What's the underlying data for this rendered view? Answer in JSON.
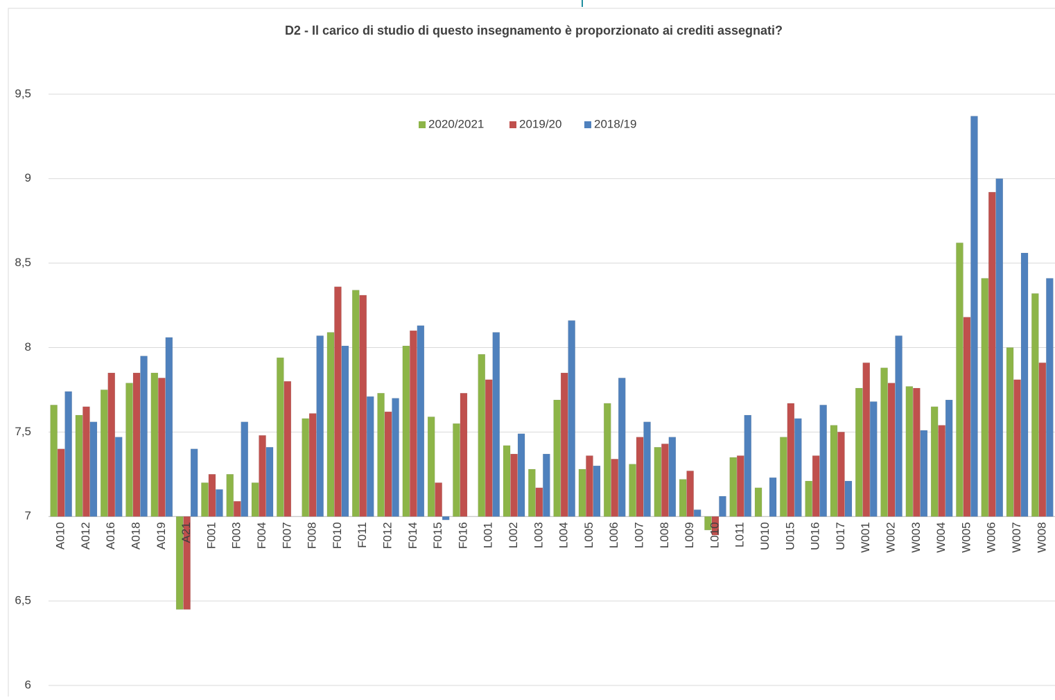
{
  "chart_data": {
    "type": "bar",
    "title": "D2 - Il carico di studio di questo insegnamento è proporzionato ai crediti assegnati?",
    "categories": [
      "A010",
      "A012",
      "A016",
      "A018",
      "A019",
      "A21",
      "F001",
      "F003",
      "F004",
      "F007",
      "F008",
      "F010",
      "F011",
      "F012",
      "F014",
      "F015",
      "F016",
      "L001",
      "L002",
      "L003",
      "L004",
      "L005",
      "L006",
      "L007",
      "L008",
      "L009",
      "L010",
      "L011",
      "U010",
      "U015",
      "U016",
      "U017",
      "W001",
      "W002",
      "W003",
      "W004",
      "W005",
      "W006",
      "W007",
      "W008"
    ],
    "series": [
      {
        "name": "2020/2021",
        "color": "#8db548",
        "values": [
          7.66,
          7.6,
          7.75,
          7.79,
          7.85,
          6.45,
          7.2,
          7.25,
          7.2,
          7.94,
          7.58,
          8.09,
          8.34,
          7.73,
          8.01,
          7.59,
          7.55,
          7.96,
          7.42,
          7.28,
          7.69,
          7.28,
          7.67,
          7.31,
          7.41,
          7.22,
          6.92,
          7.35,
          7.17,
          7.47,
          7.21,
          7.54,
          7.76,
          7.88,
          7.77,
          7.65,
          8.62,
          8.41,
          8.0,
          8.32
        ]
      },
      {
        "name": "2019/20",
        "color": "#c0504d",
        "values": [
          7.4,
          7.65,
          7.85,
          7.85,
          7.82,
          6.45,
          7.25,
          7.09,
          7.48,
          7.8,
          7.61,
          8.36,
          8.31,
          7.62,
          8.1,
          7.2,
          7.73,
          7.81,
          7.37,
          7.17,
          7.85,
          7.36,
          7.34,
          7.47,
          7.43,
          7.27,
          6.89,
          7.36,
          null,
          7.67,
          7.36,
          7.5,
          7.91,
          7.79,
          7.76,
          7.54,
          8.18,
          8.92,
          7.81,
          7.91
        ]
      },
      {
        "name": "2018/19",
        "color": "#4f81bd",
        "values": [
          7.74,
          7.56,
          7.47,
          7.95,
          8.06,
          7.4,
          7.16,
          7.56,
          7.41,
          null,
          8.07,
          8.01,
          7.71,
          7.7,
          8.13,
          6.98,
          null,
          8.09,
          7.49,
          7.37,
          8.16,
          7.3,
          7.82,
          7.56,
          7.47,
          7.04,
          7.12,
          7.6,
          7.23,
          7.58,
          7.66,
          7.21,
          7.68,
          8.07,
          7.51,
          7.69,
          9.37,
          9.0,
          8.56,
          8.41
        ]
      }
    ],
    "ylim": [
      6,
      10
    ],
    "yticks": [
      6,
      {
        "value": 6.5,
        "label": "6,5"
      },
      7,
      {
        "value": 7.5,
        "label": "7,5"
      },
      8,
      {
        "value": 8.5,
        "label": "8,5"
      },
      9,
      {
        "value": 9.5,
        "label": "9,5"
      }
    ],
    "x_axis_crosses": 7,
    "grid": true,
    "legend": "top"
  }
}
